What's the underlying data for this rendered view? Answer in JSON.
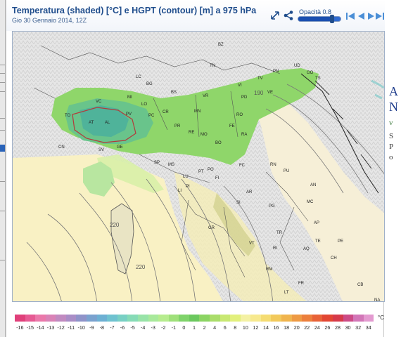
{
  "window": {
    "title": "Temperatura (shaded) [°C] e HGPT (contour) [m] a 975 hPa",
    "subtitle": "Gio 30 Gennaio 2014, 12Z"
  },
  "toolbar": {
    "opacity_label": "Opacità 0.8",
    "opacity_value": 0.8,
    "icons": [
      "resize-icon",
      "share-icon",
      "first-frame-icon",
      "previous-frame-icon",
      "next-frame-icon",
      "last-frame-icon"
    ]
  },
  "map": {
    "city_labels": [
      "BZ",
      "TN",
      "UD",
      "TS",
      "PN",
      "VC",
      "LC",
      "BG",
      "BS",
      "VR",
      "VI",
      "PD",
      "TV",
      "VE",
      "GO",
      "MI",
      "LO",
      "CR",
      "MN",
      "RO",
      "FE",
      "TO",
      "AT",
      "AL",
      "PV",
      "PC",
      "PR",
      "RE",
      "MO",
      "BO",
      "RA",
      "CN",
      "SV",
      "GE",
      "SP",
      "MS",
      "LU",
      "PT",
      "PO",
      "FI",
      "FC",
      "RN",
      "PU",
      "AN",
      "MC",
      "AP",
      "TE",
      "PE",
      "AR",
      "PG",
      "SI",
      "GR",
      "VT",
      "RI",
      "AQ",
      "CH",
      "TR",
      "RM",
      "FR",
      "LT",
      "CB",
      "LI",
      "PI",
      "NA"
    ],
    "contour_labels": [
      "190",
      "220",
      "220"
    ]
  },
  "colorbar": {
    "labels": [
      "-16",
      "-15",
      "-14",
      "-13",
      "-12",
      "-11",
      "-10",
      "-9",
      "-8",
      "-7",
      "-6",
      "-5",
      "-4",
      "-3",
      "-2",
      "-1",
      "0",
      "1",
      "2",
      "4",
      "6",
      "8",
      "10",
      "12",
      "14",
      "16",
      "18",
      "20",
      "22",
      "24",
      "26",
      "28",
      "30",
      "32",
      "34"
    ],
    "colors": [
      "#e0407a",
      "#e65a93",
      "#ea78aa",
      "#d982b6",
      "#c08ac0",
      "#a98dc6",
      "#8f93c9",
      "#7aa2cf",
      "#6db0d3",
      "#6fc2d0",
      "#78d0c4",
      "#86dbb6",
      "#98e3a8",
      "#a8e99b",
      "#b6ec8e",
      "#9fe07a",
      "#7fd36a",
      "#6cc85e",
      "#8bd463",
      "#aadd6a",
      "#c8e872",
      "#e2f07c",
      "#f4f1a4",
      "#f7e98e",
      "#f5dc72",
      "#f2c95b",
      "#f0b44d",
      "#ee9a43",
      "#ec7f3c",
      "#e86237",
      "#e24633",
      "#d63a4a",
      "#cc4b86",
      "#d276b7",
      "#e39ad0"
    ],
    "unit": "°C"
  },
  "side_panel": {
    "letters": [
      "A",
      "N",
      "v",
      "S",
      "P",
      "o"
    ]
  }
}
